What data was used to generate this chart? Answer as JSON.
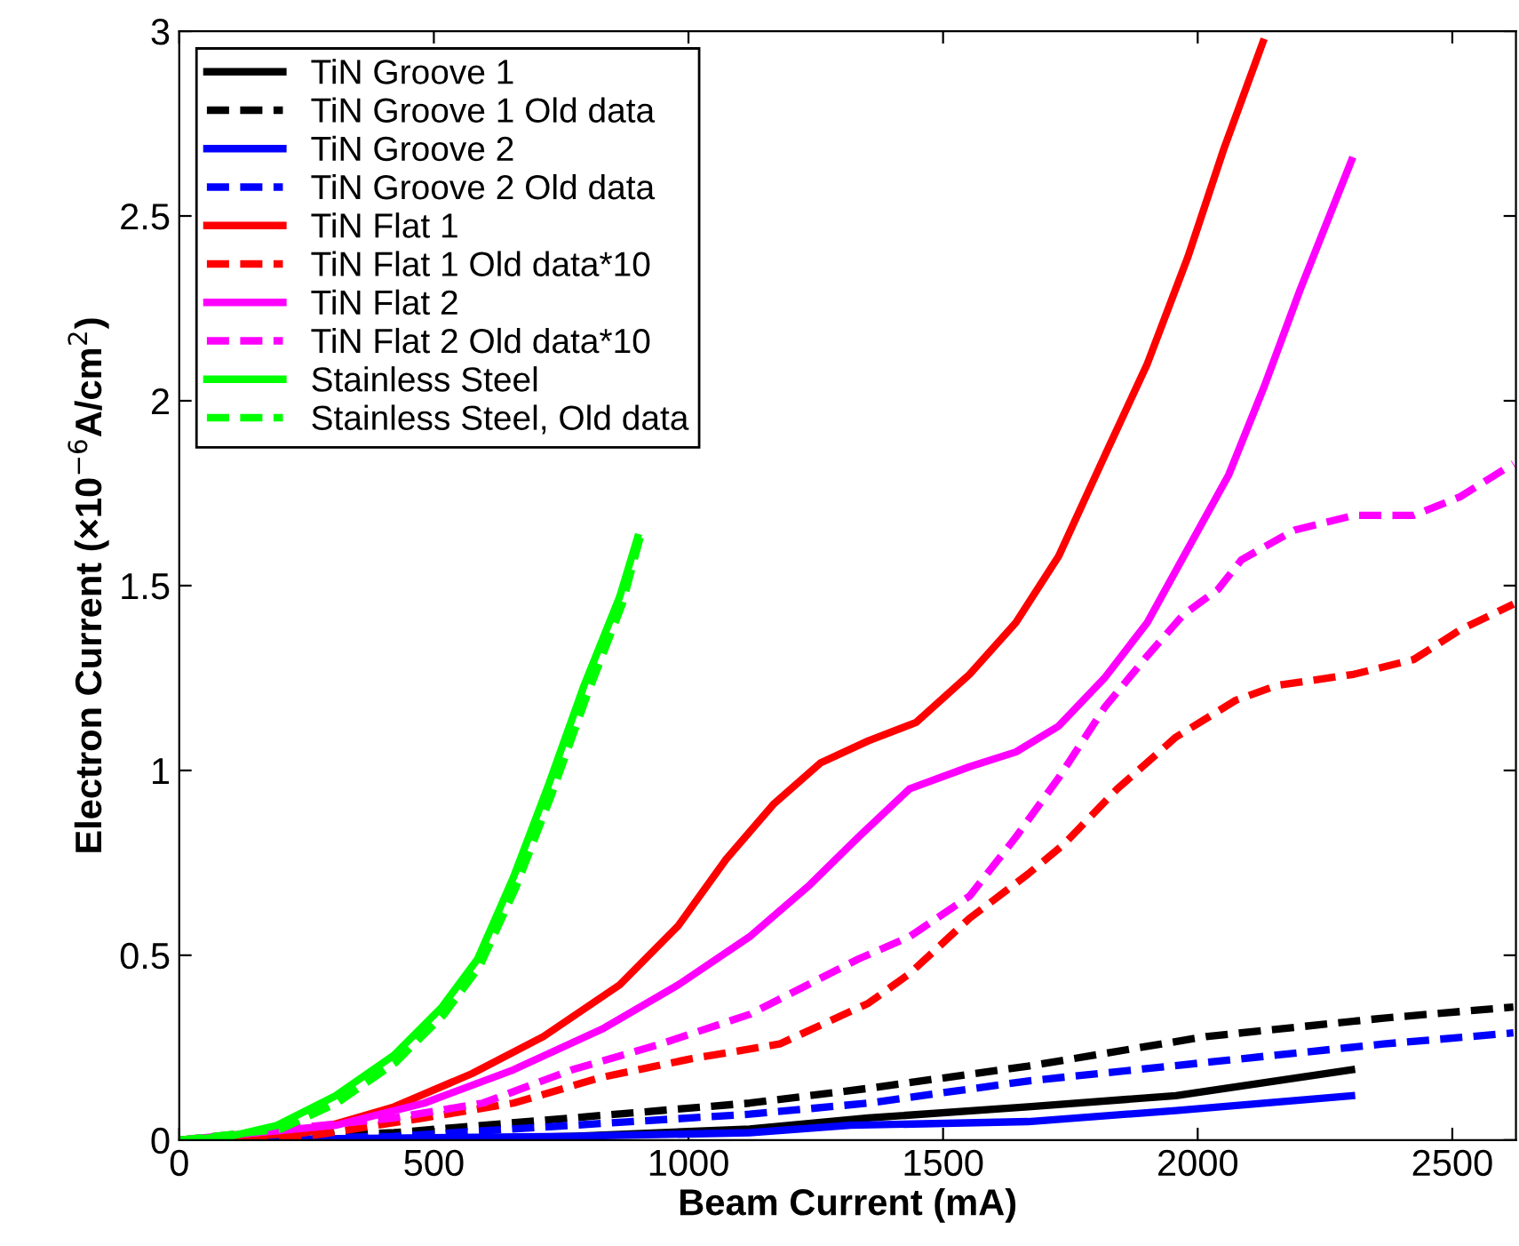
{
  "chart_data": {
    "type": "line",
    "xlabel": "Beam Current (mA)",
    "ylabel": "Electron Current (×10$^{−6}$A/cm$^{2}$)",
    "xlim": [
      0,
      2625
    ],
    "ylim": [
      0,
      3
    ],
    "xticks": [
      0,
      500,
      1000,
      1500,
      2000,
      2500
    ],
    "yticks": [
      0,
      0.5,
      1,
      1.5,
      2,
      2.5,
      3
    ],
    "grid": false,
    "legend": "top left",
    "marker": "none",
    "series": [
      {
        "name": "TiN Groove 1",
        "color": "#000000",
        "line_style": "solid",
        "x": [
          0,
          422,
          771,
          1120,
          1353,
          1667,
          1957,
          2302
        ],
        "values": [
          0,
          0.0,
          0.01,
          0.03,
          0.06,
          0.09,
          0.12,
          0.19
        ]
      },
      {
        "name": "TiN Groove 1 Old data",
        "color": "#000000",
        "line_style": "dashed",
        "x": [
          0,
          422,
          771,
          1120,
          1353,
          1667,
          2016,
          2365,
          2620
        ],
        "values": [
          0,
          0.02,
          0.06,
          0.1,
          0.14,
          0.2,
          0.28,
          0.33,
          0.36
        ]
      },
      {
        "name": "TiN Groove 2",
        "color": "#0000ff",
        "line_style": "solid",
        "x": [
          0,
          771,
          1120,
          1318,
          1667,
          1957,
          2302
        ],
        "values": [
          0,
          0.01,
          0.02,
          0.04,
          0.05,
          0.08,
          0.12
        ]
      },
      {
        "name": "TiN Groove 2 Old data",
        "color": "#0000ff",
        "line_style": "dashed",
        "x": [
          0,
          422,
          771,
          1120,
          1353,
          1667,
          2016,
          2365,
          2620
        ],
        "values": [
          0,
          0.01,
          0.04,
          0.07,
          0.1,
          0.16,
          0.21,
          0.26,
          0.29
        ]
      },
      {
        "name": "TiN Flat 1",
        "color": "#ff0000",
        "line_style": "solid",
        "x": [
          0,
          248,
          422,
          575,
          715,
          865,
          980,
          1074,
          1168,
          1259,
          1353,
          1447,
          1552,
          1643,
          1727,
          1817,
          1901,
          1981,
          2051,
          2128
        ],
        "values": [
          0,
          0.02,
          0.09,
          0.18,
          0.28,
          0.42,
          0.58,
          0.76,
          0.91,
          1.02,
          1.08,
          1.13,
          1.26,
          1.4,
          1.58,
          1.85,
          2.1,
          2.39,
          2.68,
          2.97
        ]
      },
      {
        "name": "TiN Flat 1 Old data*10",
        "color": "#ff0000",
        "line_style": "dashed",
        "x": [
          0,
          250,
          481,
          656,
          830,
          1005,
          1179,
          1353,
          1434,
          1552,
          1667,
          1737,
          1842,
          1957,
          2075,
          2156,
          2306,
          2424,
          2515,
          2620
        ],
        "values": [
          0,
          0.01,
          0.06,
          0.1,
          0.17,
          0.22,
          0.26,
          0.37,
          0.45,
          0.6,
          0.72,
          0.8,
          0.95,
          1.09,
          1.19,
          1.23,
          1.26,
          1.3,
          1.38,
          1.45
        ]
      },
      {
        "name": "TiN Flat 2",
        "color": "#ff00ff",
        "line_style": "solid",
        "x": [
          0,
          307,
          481,
          656,
          830,
          980,
          1120,
          1238,
          1334,
          1434,
          1552,
          1643,
          1727,
          1817,
          1901,
          1981,
          2061,
          2131,
          2201,
          2302
        ],
        "values": [
          0,
          0.04,
          0.1,
          0.19,
          0.3,
          0.42,
          0.55,
          0.69,
          0.82,
          0.95,
          1.01,
          1.05,
          1.12,
          1.25,
          1.4,
          1.6,
          1.8,
          2.04,
          2.3,
          2.65
        ]
      },
      {
        "name": "TiN Flat 2 Old data*10",
        "color": "#ff00ff",
        "line_style": "dashed",
        "x": [
          0,
          422,
          596,
          771,
          945,
          1120,
          1334,
          1434,
          1552,
          1643,
          1727,
          1817,
          1901,
          1971,
          2040,
          2086,
          2190,
          2306,
          2424,
          2515,
          2620
        ],
        "values": [
          0,
          0.06,
          0.1,
          0.19,
          0.26,
          0.34,
          0.49,
          0.55,
          0.66,
          0.82,
          0.98,
          1.17,
          1.31,
          1.42,
          1.49,
          1.57,
          1.65,
          1.69,
          1.69,
          1.74,
          1.83
        ]
      },
      {
        "name": "Stainless Steel",
        "color": "#00ff00",
        "line_style": "solid",
        "x": [
          0,
          100,
          192,
          307,
          422,
          516,
          586,
          656,
          725,
          795,
          865,
          900
        ],
        "values": [
          0,
          0.01,
          0.04,
          0.12,
          0.23,
          0.36,
          0.49,
          0.71,
          0.96,
          1.23,
          1.47,
          1.63
        ]
      },
      {
        "name": "Stainless Steel, Old data",
        "color": "#00ff00",
        "line_style": "dashed",
        "x": [
          0,
          200,
          310,
          425,
          520,
          590,
          660,
          730,
          800,
          870,
          905
        ],
        "values": [
          0,
          0.03,
          0.1,
          0.21,
          0.34,
          0.47,
          0.68,
          0.93,
          1.2,
          1.45,
          1.63
        ]
      }
    ]
  }
}
